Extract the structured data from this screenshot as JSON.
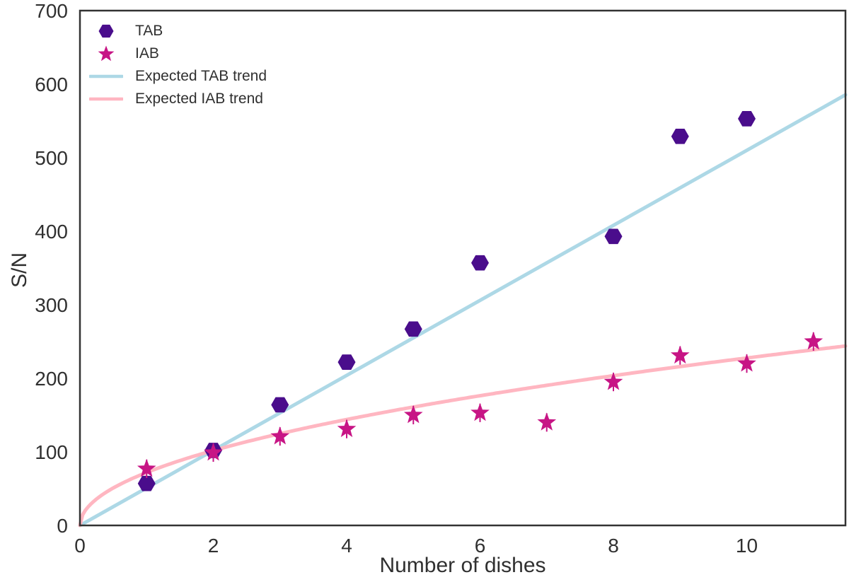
{
  "chart_data": {
    "type": "scatter",
    "title": "",
    "xlabel": "Number of dishes",
    "ylabel": "S/N",
    "xlim": [
      0,
      11.48
    ],
    "ylim": [
      0,
      700
    ],
    "xticks": [
      0,
      2,
      4,
      6,
      8,
      10
    ],
    "yticks": [
      0,
      100,
      200,
      300,
      400,
      500,
      600,
      700
    ],
    "grid": false,
    "legend_position": "upper-left",
    "background_color": "#ffffff",
    "spine_color": "#333333",
    "text_color": "#303030",
    "series": [
      {
        "name": "TAB",
        "marker": "hexagon",
        "color": "#4A0D8C",
        "x": [
          1,
          2,
          3,
          4,
          5,
          6,
          8,
          9,
          10
        ],
        "y": [
          57,
          102,
          164,
          222,
          267,
          357,
          393,
          529,
          553
        ]
      },
      {
        "name": "IAB",
        "marker": "star",
        "color": "#C71585",
        "x": [
          1,
          2,
          3,
          4,
          5,
          6,
          7,
          8,
          9,
          10,
          11
        ],
        "y": [
          77,
          99,
          121,
          131,
          150,
          153,
          140,
          195,
          231,
          220,
          250
        ]
      }
    ],
    "trends": [
      {
        "name": "Expected TAB trend",
        "type": "linear",
        "formula": "y = 51 * x",
        "slope": 51,
        "intercept": 0,
        "color": "#ADD8E6",
        "x_range": [
          0,
          11.48
        ]
      },
      {
        "name": "Expected IAB trend",
        "type": "sqrt",
        "formula": "y = 72 * sqrt(x)",
        "coefficient": 72,
        "color": "#FFB6C1",
        "x_range": [
          0,
          11.48
        ]
      }
    ]
  }
}
